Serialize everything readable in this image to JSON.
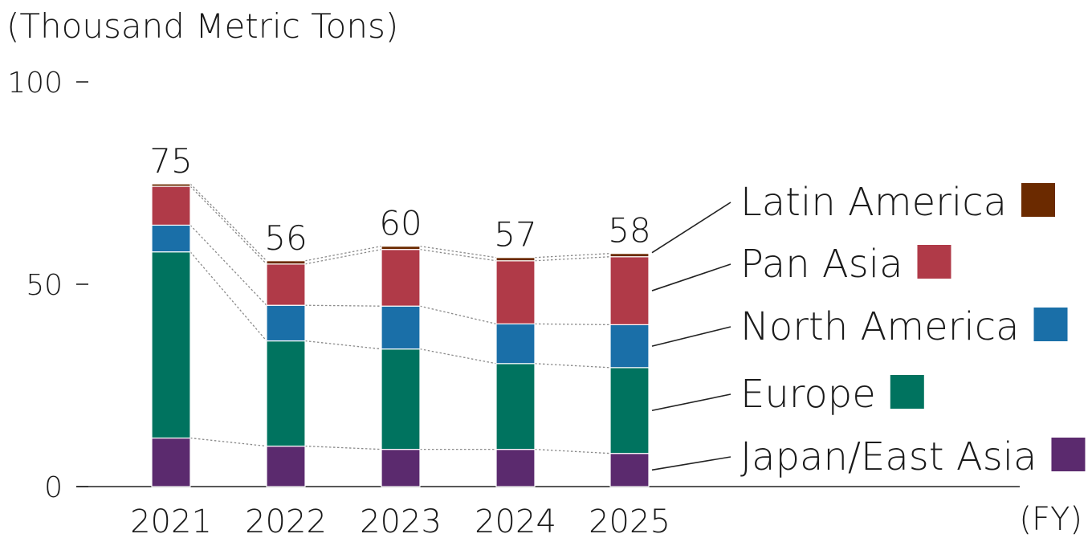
{
  "chart_data": {
    "type": "bar",
    "stacked": true,
    "unit_label": "(Thousand Metric Tons)",
    "x_unit_label": "(FY)",
    "categories": [
      "2021",
      "2022",
      "2023",
      "2024",
      "2025"
    ],
    "totals": [
      "75",
      "56",
      "60",
      "57",
      "58"
    ],
    "ylim": [
      0,
      100
    ],
    "yticks": [
      0,
      50,
      100
    ],
    "grid": false,
    "legend_position": "right",
    "series": [
      {
        "name": "Japan/East Asia",
        "color": "#5b2a6e",
        "values": [
          12,
          10,
          9.2,
          9.2,
          8.2
        ]
      },
      {
        "name": "Europe",
        "color": "#00735f",
        "values": [
          46,
          26,
          24.8,
          21.2,
          21.2
        ]
      },
      {
        "name": "North America",
        "color": "#1a6fa8",
        "values": [
          6.6,
          8.8,
          10.6,
          9.8,
          10.6
        ]
      },
      {
        "name": "Pan Asia",
        "color": "#b03a48",
        "values": [
          9.6,
          10.2,
          14,
          15.6,
          16.8
        ]
      },
      {
        "name": "Latin America",
        "color": "#6b2a00",
        "values": [
          0.6,
          0.8,
          0.8,
          0.8,
          0.8
        ]
      }
    ]
  }
}
